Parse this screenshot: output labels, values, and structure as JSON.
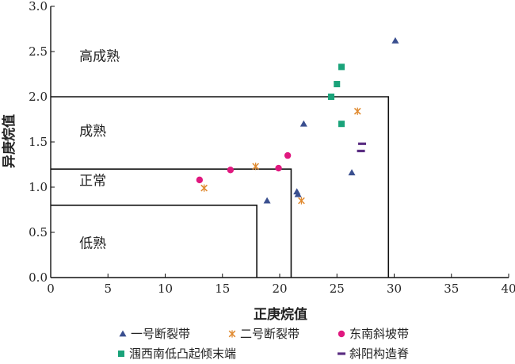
{
  "chart_data": {
    "type": "scatter",
    "xlabel": "正庚烷值",
    "ylabel": "异庚烷值",
    "xlim": [
      0,
      40
    ],
    "ylim": [
      0,
      3.0
    ],
    "xticks": [
      "0",
      "5",
      "10",
      "15",
      "20",
      "25",
      "30",
      "35",
      "40"
    ],
    "yticks": [
      "0.0",
      "0.5",
      "1.0",
      "1.5",
      "2.0",
      "2.5",
      "3.0"
    ],
    "grid": false,
    "legend_position": "bottom",
    "zones": [
      {
        "label": "低熟",
        "x_max": 18,
        "y_max": 0.8
      },
      {
        "label": "正常",
        "x_max": 21,
        "y_max": 1.2
      },
      {
        "label": "成熟",
        "x_max": 29.5,
        "y_max": 2.0
      },
      {
        "label": "高成熟"
      }
    ],
    "zone_label_positions": [
      {
        "label": "高成熟",
        "x": 2.5,
        "y": 2.4
      },
      {
        "label": "成熟",
        "x": 2.5,
        "y": 1.57
      },
      {
        "label": "正常",
        "x": 2.5,
        "y": 1.02
      },
      {
        "label": "低熟",
        "x": 2.5,
        "y": 0.33
      }
    ],
    "series": [
      {
        "name": "一号断裂带",
        "marker": "triangle",
        "color": "#3a4f8f",
        "points": [
          [
            30.1,
            2.62
          ],
          [
            22.1,
            1.7
          ],
          [
            26.3,
            1.16
          ],
          [
            21.5,
            0.95
          ],
          [
            21.6,
            0.92
          ],
          [
            18.9,
            0.85
          ]
        ]
      },
      {
        "name": "二号断裂带",
        "marker": "x-star",
        "color": "#e08a30",
        "points": [
          [
            26.8,
            1.84
          ],
          [
            17.9,
            1.23
          ],
          [
            13.4,
            0.99
          ],
          [
            21.9,
            0.85
          ]
        ]
      },
      {
        "name": "东南斜坡带",
        "marker": "circle",
        "color": "#e0187f",
        "points": [
          [
            20.7,
            1.35
          ],
          [
            19.9,
            1.21
          ],
          [
            15.7,
            1.19
          ],
          [
            13.0,
            1.08
          ]
        ]
      },
      {
        "name": "涠西南低凸起倾末端",
        "marker": "square",
        "color": "#1aa37a",
        "points": [
          [
            25.4,
            2.33
          ],
          [
            25.0,
            2.14
          ],
          [
            24.5,
            2.0
          ],
          [
            25.4,
            1.7
          ]
        ]
      },
      {
        "name": "斜阳构造脊",
        "marker": "bar",
        "color": "#5a2d82",
        "points": [
          [
            27.2,
            1.48
          ],
          [
            27.1,
            1.4
          ]
        ]
      }
    ]
  }
}
